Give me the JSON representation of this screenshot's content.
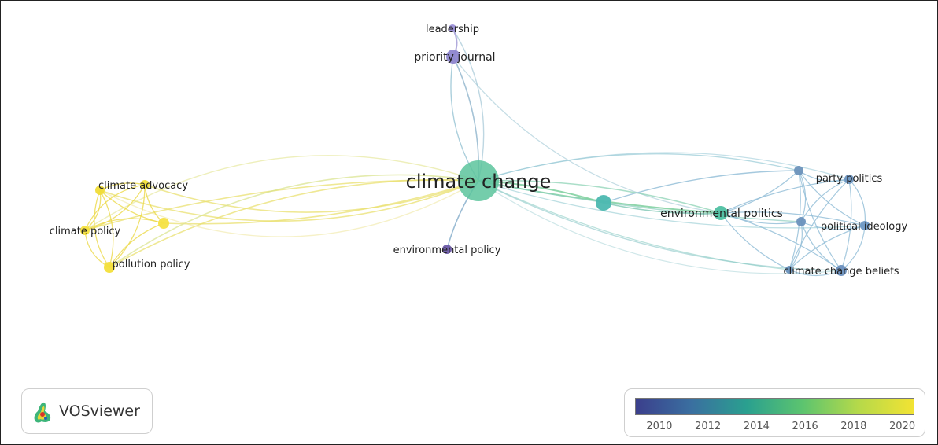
{
  "network": {
    "nodes": [
      {
        "id": "climate-change",
        "label": "climate change",
        "color": "#5cc49c"
      },
      {
        "id": "priority-journal",
        "label": "priority journal",
        "color": "#8e86cf"
      },
      {
        "id": "leadership",
        "label": "leadership",
        "color": "#9a8fd6"
      },
      {
        "id": "environmental-policy",
        "label": "environmental policy",
        "color": "#6b5aa8"
      },
      {
        "id": "climate-advocacy",
        "label": "climate advocacy",
        "color": "#f2e03a"
      },
      {
        "id": "climate-policy",
        "label": "climate policy",
        "color": "#f5e23e"
      },
      {
        "id": "pollution-policy",
        "label": "pollution policy",
        "color": "#f3df3a"
      },
      {
        "id": "environmental-politics",
        "label": "environmental politics",
        "color": "#4fc0a2"
      },
      {
        "id": "party-politics",
        "label": "party politics",
        "color": "#6c93c0"
      },
      {
        "id": "political-ideology",
        "label": "political ideology",
        "color": "#6e98c4"
      },
      {
        "id": "climate-change-beliefs",
        "label": "climate change beliefs",
        "color": "#6a8fbd"
      }
    ],
    "unlabeled_node_colors": [
      "#f0dc38",
      "#f6e244",
      "#4cb8b0",
      "#6d93bc",
      "#6b92bd",
      "#6890bb"
    ]
  },
  "legend": {
    "ticks": [
      "2010",
      "2012",
      "2014",
      "2016",
      "2018",
      "2020"
    ],
    "range": [
      2009,
      2020.5
    ],
    "gradient": [
      "#3b3f8c",
      "#3a6fa0",
      "#2aa08f",
      "#5cc46f",
      "#b5d94a",
      "#f2e333"
    ]
  },
  "brand": {
    "name": "VOSviewer"
  }
}
